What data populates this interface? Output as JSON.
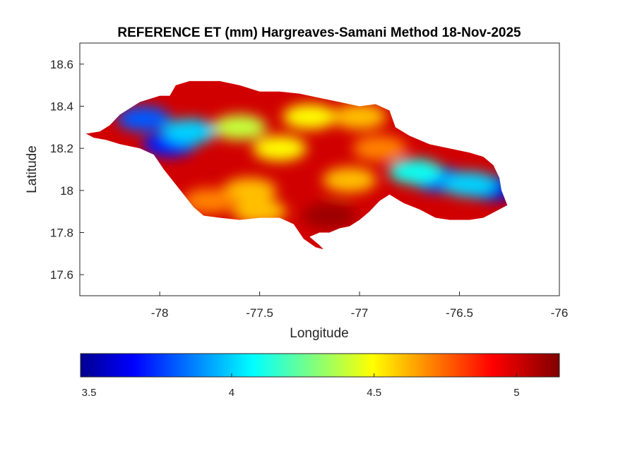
{
  "chart_data": {
    "type": "heatmap",
    "title": "REFERENCE ET (mm) Hargreaves-Samani Method  18-Nov-2025",
    "xlabel": "Longitude",
    "ylabel": "Latitude",
    "xlim": [
      -78.4,
      -76
    ],
    "ylim": [
      17.5,
      18.7
    ],
    "xticks": [
      -78,
      -77.5,
      -77,
      -76.5,
      -76
    ],
    "xtick_labels": [
      "-78",
      "-77.5",
      "-77",
      "-76.5",
      "-76"
    ],
    "yticks": [
      17.6,
      17.8,
      18,
      18.2,
      18.4,
      18.6
    ],
    "ytick_labels": [
      "17.6",
      "17.8",
      "18",
      "18.2",
      "18.4",
      "18.6"
    ],
    "grid": false,
    "colormap": "jet",
    "colorbar": {
      "orientation": "horizontal",
      "position": "bottom",
      "clim": [
        3.47,
        5.15
      ],
      "ticks": [
        3.5,
        4,
        4.5,
        5
      ],
      "tick_labels": [
        "3.5",
        "4",
        "4.5",
        "5"
      ]
    },
    "region": {
      "outline": [
        [
          -78.37,
          18.27
        ],
        [
          -78.3,
          18.28
        ],
        [
          -78.25,
          18.31
        ],
        [
          -78.2,
          18.36
        ],
        [
          -78.1,
          18.42
        ],
        [
          -78.0,
          18.45
        ],
        [
          -77.95,
          18.45
        ],
        [
          -77.92,
          18.5
        ],
        [
          -77.85,
          18.52
        ],
        [
          -77.7,
          18.52
        ],
        [
          -77.6,
          18.5
        ],
        [
          -77.5,
          18.47
        ],
        [
          -77.4,
          18.47
        ],
        [
          -77.3,
          18.46
        ],
        [
          -77.2,
          18.44
        ],
        [
          -77.1,
          18.42
        ],
        [
          -77.0,
          18.4
        ],
        [
          -76.92,
          18.41
        ],
        [
          -76.85,
          18.38
        ],
        [
          -76.82,
          18.3
        ],
        [
          -76.75,
          18.26
        ],
        [
          -76.65,
          18.22
        ],
        [
          -76.55,
          18.2
        ],
        [
          -76.45,
          18.18
        ],
        [
          -76.38,
          18.16
        ],
        [
          -76.33,
          18.12
        ],
        [
          -76.3,
          18.06
        ],
        [
          -76.29,
          18.0
        ],
        [
          -76.26,
          17.93
        ],
        [
          -76.3,
          17.91
        ],
        [
          -76.38,
          17.87
        ],
        [
          -76.45,
          17.86
        ],
        [
          -76.55,
          17.86
        ],
        [
          -76.62,
          17.87
        ],
        [
          -76.7,
          17.91
        ],
        [
          -76.78,
          17.94
        ],
        [
          -76.85,
          17.98
        ],
        [
          -76.9,
          17.95
        ],
        [
          -76.95,
          17.9
        ],
        [
          -77.0,
          17.86
        ],
        [
          -77.05,
          17.83
        ],
        [
          -77.1,
          17.82
        ],
        [
          -77.15,
          17.8
        ],
        [
          -77.2,
          17.8
        ],
        [
          -77.25,
          17.78
        ],
        [
          -77.2,
          17.74
        ],
        [
          -77.18,
          17.72
        ],
        [
          -77.22,
          17.73
        ],
        [
          -77.28,
          17.77
        ],
        [
          -77.33,
          17.84
        ],
        [
          -77.4,
          17.87
        ],
        [
          -77.5,
          17.87
        ],
        [
          -77.6,
          17.86
        ],
        [
          -77.7,
          17.87
        ],
        [
          -77.78,
          17.88
        ],
        [
          -77.83,
          17.92
        ],
        [
          -77.88,
          17.98
        ],
        [
          -77.93,
          18.04
        ],
        [
          -77.98,
          18.1
        ],
        [
          -78.03,
          18.17
        ],
        [
          -78.1,
          18.2
        ],
        [
          -78.2,
          18.22
        ],
        [
          -78.27,
          18.24
        ],
        [
          -78.33,
          18.25
        ],
        [
          -78.37,
          18.27
        ]
      ],
      "blobs": [
        {
          "lon": -77.95,
          "lat": 18.22,
          "value": 3.7
        },
        {
          "lon": -78.08,
          "lat": 18.34,
          "value": 3.8
        },
        {
          "lon": -77.85,
          "lat": 18.28,
          "value": 4.0
        },
        {
          "lon": -76.6,
          "lat": 18.05,
          "value": 3.8
        },
        {
          "lon": -76.33,
          "lat": 18.01,
          "value": 3.6
        },
        {
          "lon": -76.45,
          "lat": 18.03,
          "value": 4.0
        },
        {
          "lon": -76.72,
          "lat": 18.09,
          "value": 4.1
        },
        {
          "lon": -77.6,
          "lat": 18.3,
          "value": 4.4
        },
        {
          "lon": -77.25,
          "lat": 18.35,
          "value": 4.5
        },
        {
          "lon": -77.0,
          "lat": 18.35,
          "value": 4.6
        },
        {
          "lon": -77.4,
          "lat": 18.2,
          "value": 4.5
        },
        {
          "lon": -77.55,
          "lat": 18.0,
          "value": 4.6
        },
        {
          "lon": -77.75,
          "lat": 17.95,
          "value": 4.7
        },
        {
          "lon": -77.5,
          "lat": 17.9,
          "value": 4.6
        },
        {
          "lon": -77.15,
          "lat": 17.88,
          "value": 5.1
        },
        {
          "lon": -77.05,
          "lat": 18.05,
          "value": 4.6
        },
        {
          "lon": -76.9,
          "lat": 18.2,
          "value": 4.7
        }
      ],
      "base_value": 5.0
    }
  }
}
